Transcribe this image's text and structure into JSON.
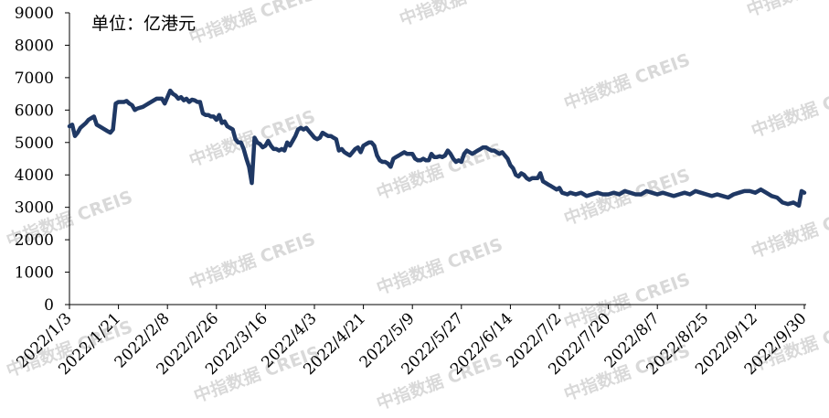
{
  "chart_data": {
    "type": "line",
    "unit_label": "单位：亿港元",
    "watermark": "中指数据  CREIS",
    "ylim": [
      0,
      9000
    ],
    "y_ticks": [
      0,
      1000,
      2000,
      3000,
      4000,
      5000,
      6000,
      7000,
      8000,
      9000
    ],
    "x_tick_labels": [
      "2022/1/3",
      "2022/1/21",
      "2022/2/8",
      "2022/2/26",
      "2022/3/16",
      "2022/4/3",
      "2022/4/21",
      "2022/5/9",
      "2022/5/27",
      "2022/6/14",
      "2022/7/2",
      "2022/7/20",
      "2022/8/7",
      "2022/8/25",
      "2022/9/12",
      "2022/9/30"
    ],
    "x_range": [
      "2022-01-03",
      "2022-09-30"
    ],
    "grid": false,
    "legend": "none",
    "line_color": "#1f3864",
    "series": [
      {
        "points": [
          [
            "2022-01-03",
            5500
          ],
          [
            "2022-01-04",
            5550
          ],
          [
            "2022-01-05",
            5200
          ],
          [
            "2022-01-06",
            5300
          ],
          [
            "2022-01-07",
            5450
          ],
          [
            "2022-01-09",
            5600
          ],
          [
            "2022-01-10",
            5700
          ],
          [
            "2022-01-11",
            5750
          ],
          [
            "2022-01-12",
            5800
          ],
          [
            "2022-01-13",
            5550
          ],
          [
            "2022-01-14",
            5500
          ],
          [
            "2022-01-15",
            5450
          ],
          [
            "2022-01-17",
            5350
          ],
          [
            "2022-01-18",
            5300
          ],
          [
            "2022-01-19",
            5400
          ],
          [
            "2022-01-20",
            6200
          ],
          [
            "2022-01-21",
            6250
          ],
          [
            "2022-01-23",
            6250
          ],
          [
            "2022-01-24",
            6280
          ],
          [
            "2022-01-25",
            6200
          ],
          [
            "2022-01-26",
            6150
          ],
          [
            "2022-01-27",
            6000
          ],
          [
            "2022-01-28",
            6050
          ],
          [
            "2022-01-30",
            6100
          ],
          [
            "2022-01-31",
            6150
          ],
          [
            "2022-02-01",
            6200
          ],
          [
            "2022-02-03",
            6300
          ],
          [
            "2022-02-04",
            6350
          ],
          [
            "2022-02-06",
            6350
          ],
          [
            "2022-02-07",
            6200
          ],
          [
            "2022-02-08",
            6400
          ],
          [
            "2022-02-09",
            6600
          ],
          [
            "2022-02-10",
            6500
          ],
          [
            "2022-02-11",
            6450
          ],
          [
            "2022-02-12",
            6350
          ],
          [
            "2022-02-13",
            6400
          ],
          [
            "2022-02-14",
            6300
          ],
          [
            "2022-02-15",
            6350
          ],
          [
            "2022-02-16",
            6250
          ],
          [
            "2022-02-17",
            6320
          ],
          [
            "2022-02-18",
            6300
          ],
          [
            "2022-02-19",
            6250
          ],
          [
            "2022-02-20",
            6250
          ],
          [
            "2022-02-21",
            5900
          ],
          [
            "2022-02-22",
            5850
          ],
          [
            "2022-02-23",
            5850
          ],
          [
            "2022-02-24",
            5800
          ],
          [
            "2022-02-25",
            5800
          ],
          [
            "2022-02-26",
            5700
          ],
          [
            "2022-02-27",
            5850
          ],
          [
            "2022-02-28",
            5600
          ],
          [
            "2022-03-01",
            5650
          ],
          [
            "2022-03-02",
            5500
          ],
          [
            "2022-03-03",
            5450
          ],
          [
            "2022-03-04",
            5400
          ],
          [
            "2022-03-05",
            5100
          ],
          [
            "2022-03-06",
            5000
          ],
          [
            "2022-03-07",
            5000
          ],
          [
            "2022-03-08",
            4800
          ],
          [
            "2022-03-09",
            4500
          ],
          [
            "2022-03-10",
            4250
          ],
          [
            "2022-03-11",
            3750
          ],
          [
            "2022-03-12",
            5150
          ],
          [
            "2022-03-13",
            5000
          ],
          [
            "2022-03-14",
            4950
          ],
          [
            "2022-03-15",
            4850
          ],
          [
            "2022-03-16",
            4900
          ],
          [
            "2022-03-17",
            5050
          ],
          [
            "2022-03-18",
            4900
          ],
          [
            "2022-03-19",
            4800
          ],
          [
            "2022-03-20",
            4800
          ],
          [
            "2022-03-21",
            4750
          ],
          [
            "2022-03-22",
            4800
          ],
          [
            "2022-03-23",
            4750
          ],
          [
            "2022-03-24",
            5000
          ],
          [
            "2022-03-25",
            4900
          ],
          [
            "2022-03-26",
            5050
          ],
          [
            "2022-03-27",
            5200
          ],
          [
            "2022-03-28",
            5400
          ],
          [
            "2022-03-29",
            5450
          ],
          [
            "2022-03-30",
            5400
          ],
          [
            "2022-03-31",
            5450
          ],
          [
            "2022-04-01",
            5350
          ],
          [
            "2022-04-02",
            5250
          ],
          [
            "2022-04-03",
            5150
          ],
          [
            "2022-04-04",
            5100
          ],
          [
            "2022-04-05",
            5150
          ],
          [
            "2022-04-06",
            5300
          ],
          [
            "2022-04-07",
            5250
          ],
          [
            "2022-04-08",
            5200
          ],
          [
            "2022-04-09",
            5200
          ],
          [
            "2022-04-10",
            5150
          ],
          [
            "2022-04-11",
            5100
          ],
          [
            "2022-04-12",
            4750
          ],
          [
            "2022-04-13",
            4800
          ],
          [
            "2022-04-14",
            4700
          ],
          [
            "2022-04-15",
            4650
          ],
          [
            "2022-04-16",
            4600
          ],
          [
            "2022-04-17",
            4700
          ],
          [
            "2022-04-18",
            4800
          ],
          [
            "2022-04-19",
            4850
          ],
          [
            "2022-04-20",
            4700
          ],
          [
            "2022-04-21",
            4900
          ],
          [
            "2022-04-22",
            4950
          ],
          [
            "2022-04-23",
            5000
          ],
          [
            "2022-04-24",
            5000
          ],
          [
            "2022-04-25",
            4900
          ],
          [
            "2022-04-26",
            4600
          ],
          [
            "2022-04-27",
            4450
          ],
          [
            "2022-04-28",
            4400
          ],
          [
            "2022-04-29",
            4400
          ],
          [
            "2022-04-30",
            4350
          ],
          [
            "2022-05-01",
            4250
          ],
          [
            "2022-05-02",
            4500
          ],
          [
            "2022-05-03",
            4550
          ],
          [
            "2022-05-04",
            4600
          ],
          [
            "2022-05-05",
            4650
          ],
          [
            "2022-05-06",
            4700
          ],
          [
            "2022-05-07",
            4650
          ],
          [
            "2022-05-08",
            4650
          ],
          [
            "2022-05-09",
            4650
          ],
          [
            "2022-05-10",
            4500
          ],
          [
            "2022-05-11",
            4450
          ],
          [
            "2022-05-12",
            4450
          ],
          [
            "2022-05-13",
            4500
          ],
          [
            "2022-05-14",
            4450
          ],
          [
            "2022-05-15",
            4450
          ],
          [
            "2022-05-16",
            4650
          ],
          [
            "2022-05-17",
            4550
          ],
          [
            "2022-05-18",
            4550
          ],
          [
            "2022-05-19",
            4580
          ],
          [
            "2022-05-20",
            4550
          ],
          [
            "2022-05-21",
            4600
          ],
          [
            "2022-05-22",
            4750
          ],
          [
            "2022-05-23",
            4650
          ],
          [
            "2022-05-24",
            4500
          ],
          [
            "2022-05-25",
            4400
          ],
          [
            "2022-05-26",
            4450
          ],
          [
            "2022-05-27",
            4400
          ],
          [
            "2022-05-28",
            4650
          ],
          [
            "2022-05-29",
            4750
          ],
          [
            "2022-05-30",
            4700
          ],
          [
            "2022-05-31",
            4650
          ],
          [
            "2022-06-01",
            4700
          ],
          [
            "2022-06-02",
            4750
          ],
          [
            "2022-06-03",
            4800
          ],
          [
            "2022-06-04",
            4850
          ],
          [
            "2022-06-05",
            4850
          ],
          [
            "2022-06-06",
            4800
          ],
          [
            "2022-06-07",
            4750
          ],
          [
            "2022-06-08",
            4750
          ],
          [
            "2022-06-09",
            4700
          ],
          [
            "2022-06-10",
            4650
          ],
          [
            "2022-06-11",
            4700
          ],
          [
            "2022-06-12",
            4600
          ],
          [
            "2022-06-13",
            4500
          ],
          [
            "2022-06-14",
            4300
          ],
          [
            "2022-06-15",
            4200
          ],
          [
            "2022-06-16",
            4000
          ],
          [
            "2022-06-17",
            3950
          ],
          [
            "2022-06-18",
            4050
          ],
          [
            "2022-06-19",
            4000
          ],
          [
            "2022-06-20",
            3900
          ],
          [
            "2022-06-21",
            3850
          ],
          [
            "2022-06-22",
            3900
          ],
          [
            "2022-06-23",
            3900
          ],
          [
            "2022-06-24",
            3900
          ],
          [
            "2022-06-25",
            4050
          ],
          [
            "2022-06-26",
            3800
          ],
          [
            "2022-06-27",
            3750
          ],
          [
            "2022-06-28",
            3700
          ],
          [
            "2022-06-29",
            3650
          ],
          [
            "2022-06-30",
            3600
          ],
          [
            "2022-07-01",
            3550
          ],
          [
            "2022-07-02",
            3600
          ],
          [
            "2022-07-03",
            3450
          ],
          [
            "2022-07-05",
            3400
          ],
          [
            "2022-07-06",
            3450
          ],
          [
            "2022-07-08",
            3400
          ],
          [
            "2022-07-10",
            3450
          ],
          [
            "2022-07-12",
            3350
          ],
          [
            "2022-07-14",
            3400
          ],
          [
            "2022-07-16",
            3450
          ],
          [
            "2022-07-18",
            3400
          ],
          [
            "2022-07-20",
            3400
          ],
          [
            "2022-07-22",
            3450
          ],
          [
            "2022-07-24",
            3400
          ],
          [
            "2022-07-26",
            3500
          ],
          [
            "2022-07-28",
            3450
          ],
          [
            "2022-07-30",
            3400
          ],
          [
            "2022-08-01",
            3400
          ],
          [
            "2022-08-03",
            3500
          ],
          [
            "2022-08-05",
            3450
          ],
          [
            "2022-08-07",
            3400
          ],
          [
            "2022-08-09",
            3450
          ],
          [
            "2022-08-11",
            3400
          ],
          [
            "2022-08-13",
            3350
          ],
          [
            "2022-08-15",
            3400
          ],
          [
            "2022-08-17",
            3450
          ],
          [
            "2022-08-19",
            3400
          ],
          [
            "2022-08-21",
            3500
          ],
          [
            "2022-08-23",
            3450
          ],
          [
            "2022-08-25",
            3400
          ],
          [
            "2022-08-27",
            3350
          ],
          [
            "2022-08-29",
            3400
          ],
          [
            "2022-08-31",
            3350
          ],
          [
            "2022-09-02",
            3300
          ],
          [
            "2022-09-04",
            3400
          ],
          [
            "2022-09-06",
            3450
          ],
          [
            "2022-09-08",
            3500
          ],
          [
            "2022-09-10",
            3500
          ],
          [
            "2022-09-12",
            3450
          ],
          [
            "2022-09-14",
            3550
          ],
          [
            "2022-09-16",
            3450
          ],
          [
            "2022-09-18",
            3350
          ],
          [
            "2022-09-20",
            3300
          ],
          [
            "2022-09-22",
            3150
          ],
          [
            "2022-09-24",
            3100
          ],
          [
            "2022-09-26",
            3150
          ],
          [
            "2022-09-27",
            3100
          ],
          [
            "2022-09-28",
            3050
          ],
          [
            "2022-09-29",
            3500
          ],
          [
            "2022-09-30",
            3450
          ]
        ]
      }
    ]
  }
}
